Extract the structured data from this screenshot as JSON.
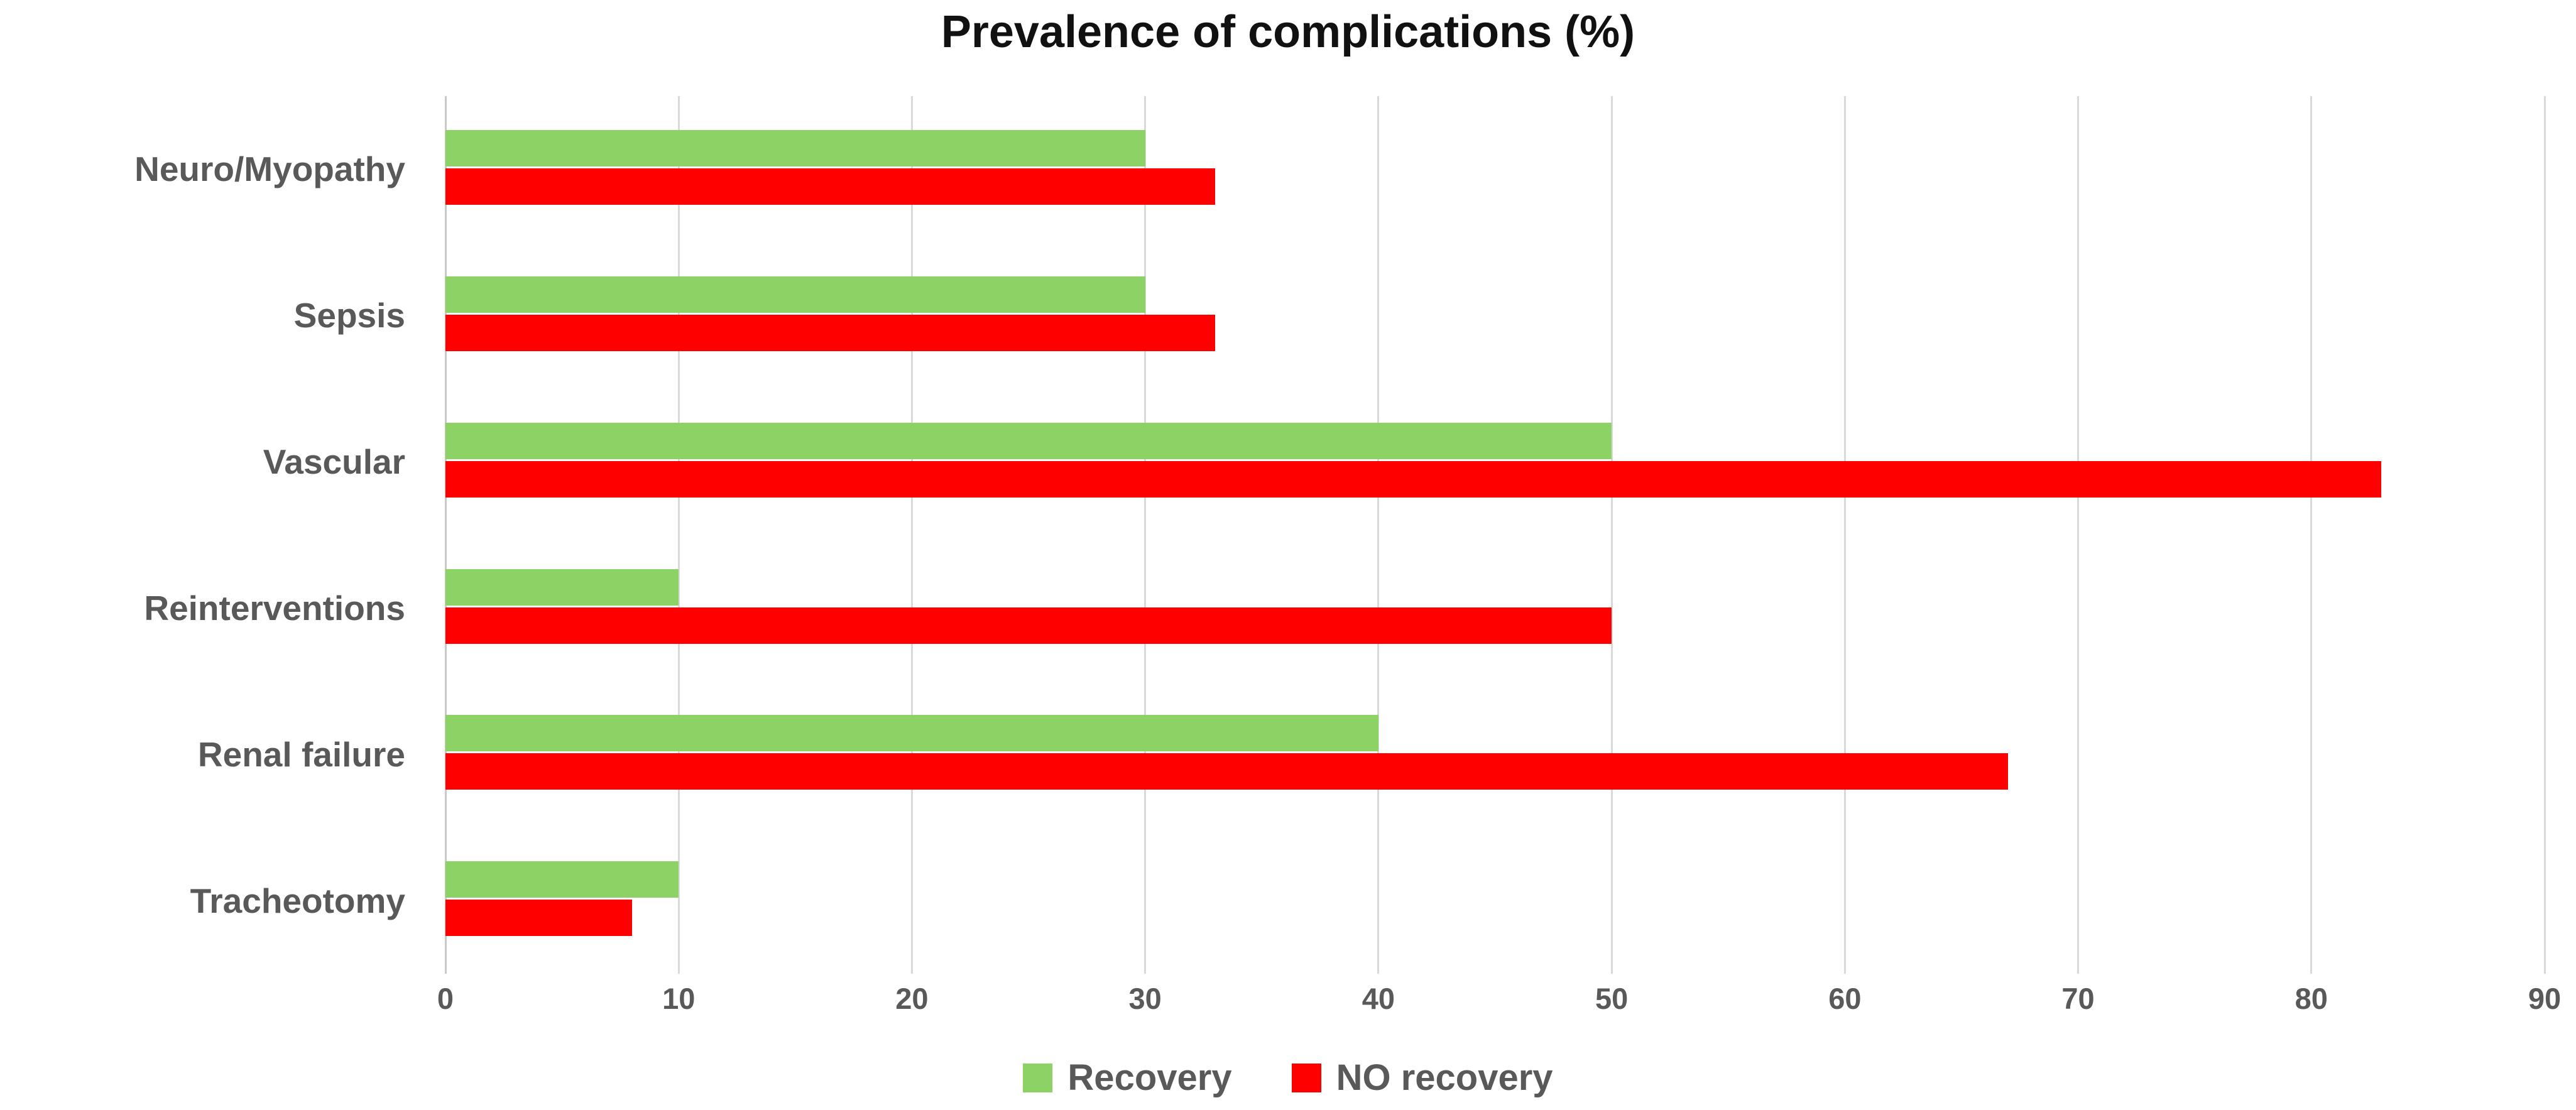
{
  "title": "Prevalence of complications (%)",
  "chart_data": {
    "type": "bar",
    "orientation": "horizontal",
    "title": "Prevalence of complications (%)",
    "categories": [
      "Neuro/Myopathy",
      "Sepsis",
      "Vascular",
      "Reinterventions",
      "Renal failure",
      "Tracheotomy"
    ],
    "series": [
      {
        "name": "Recovery",
        "color": "#8CD264",
        "values": [
          30,
          30,
          50,
          10,
          40,
          10
        ]
      },
      {
        "name": "NO recovery",
        "color": "#FE0000",
        "values": [
          33,
          33,
          83,
          50,
          67,
          8
        ]
      }
    ],
    "xlabel": "",
    "ylabel": "",
    "xlim": [
      0,
      90
    ],
    "x_ticks": [
      0,
      10,
      20,
      30,
      40,
      50,
      60,
      70,
      80,
      90
    ],
    "grid": "vertical-only",
    "legend_position": "bottom-center"
  },
  "colors": {
    "recovery_green": "#8CD264",
    "no_recovery_red": "#FE0000",
    "label_gray": "#595959",
    "gridline_gray": "#d9d9d9",
    "title_black": "#111111",
    "background": "#ffffff"
  }
}
